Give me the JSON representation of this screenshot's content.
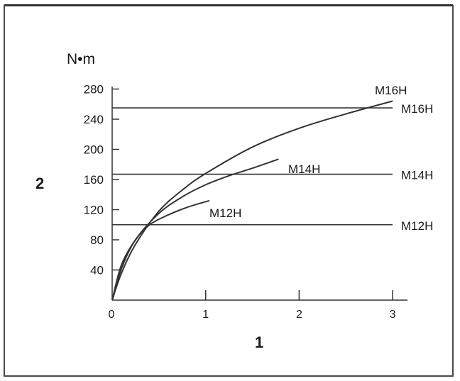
{
  "chart_data": {
    "type": "line",
    "unit_label": "N•m",
    "ylabel": "2",
    "xlabel": "1",
    "xlim": [
      0,
      3.1
    ],
    "ylim": [
      0,
      290
    ],
    "xticks": [
      0,
      1,
      2,
      3
    ],
    "yticks": [
      40,
      80,
      120,
      160,
      200,
      240,
      280
    ],
    "grid": false,
    "reference_lines": [
      {
        "name": "M16H",
        "y": 255
      },
      {
        "name": "M14H",
        "y": 167
      },
      {
        "name": "M12H",
        "y": 100
      }
    ],
    "series": [
      {
        "name": "M16H",
        "x": [
          0,
          0.1,
          0.25,
          0.5,
          0.75,
          1.0,
          1.5,
          2.0,
          2.5,
          3.0
        ],
        "values": [
          0,
          36,
          74,
          118,
          146,
          168,
          203,
          228,
          247,
          264
        ]
      },
      {
        "name": "M14H",
        "x": [
          0,
          0.1,
          0.25,
          0.5,
          0.75,
          1.0,
          1.25,
          1.5,
          1.78
        ],
        "values": [
          0,
          42,
          80,
          115,
          137,
          153,
          165,
          175,
          187
        ]
      },
      {
        "name": "M12H",
        "x": [
          0,
          0.1,
          0.25,
          0.4,
          0.6,
          0.8,
          1.04
        ],
        "values": [
          0,
          47,
          80,
          100,
          113,
          123,
          132
        ]
      }
    ]
  }
}
